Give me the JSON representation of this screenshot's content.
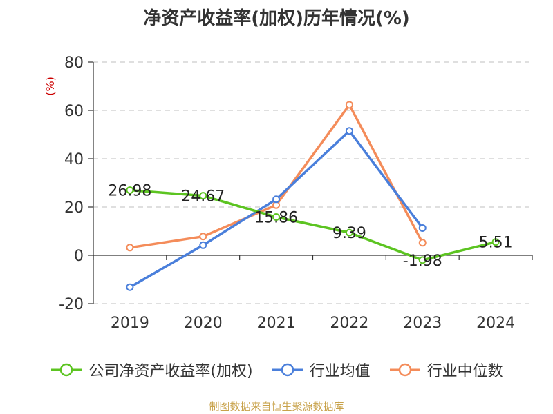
{
  "chart_data": {
    "type": "line",
    "title": "净资产收益率(加权)历年情况(%)",
    "ylabel": "(%)",
    "categories": [
      "2019",
      "2020",
      "2021",
      "2022",
      "2023",
      "2024"
    ],
    "ylim": [
      -20,
      80
    ],
    "yticks": [
      -20,
      0,
      20,
      40,
      60,
      80
    ],
    "grid": true,
    "legend_position": "bottom",
    "series": [
      {
        "name": "公司净资产收益率(加权)",
        "color": "#5cc421",
        "values": [
          26.98,
          24.67,
          15.86,
          9.39,
          -1.98,
          5.51
        ],
        "labels": [
          "26.98",
          "24.67",
          "15.86",
          "9.39",
          "-1.98",
          "5.51"
        ]
      },
      {
        "name": "行业均值",
        "color": "#4a7fdb",
        "values": [
          -13.2,
          4.2,
          23.2,
          51.5,
          11.3,
          null
        ]
      },
      {
        "name": "行业中位数",
        "color": "#f48c5a",
        "values": [
          3.2,
          7.8,
          20.8,
          62.3,
          5.2,
          null
        ]
      }
    ]
  },
  "source_text": "制图数据来自恒生聚源数据库",
  "colors": {
    "axis_label": "#cc0000",
    "text": "#333333",
    "grid": "#cccccc",
    "source": "#c8a24a"
  }
}
